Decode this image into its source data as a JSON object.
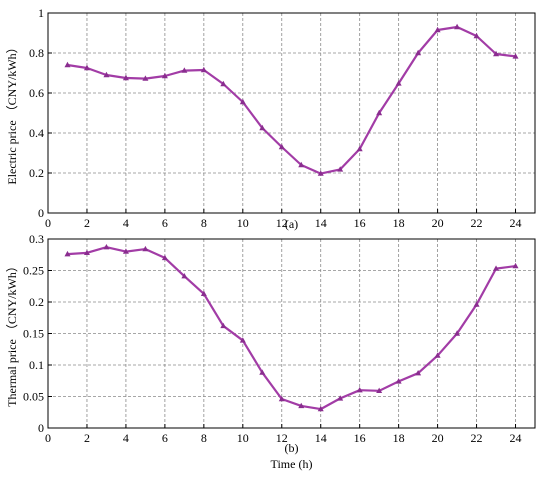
{
  "colors": {
    "series": "#a23ca6",
    "marker": "#8a2d8f"
  },
  "chart_data": [
    {
      "type": "line",
      "ylabel": "Electric price （CNY/kWh）",
      "xlabel": "",
      "caption": "(a)",
      "xlim": [
        0,
        25
      ],
      "ylim": [
        0,
        1
      ],
      "grid": true,
      "xticks": [
        0,
        2,
        4,
        6,
        8,
        10,
        12,
        14,
        16,
        18,
        20,
        22,
        24
      ],
      "yticks": [
        0,
        0.2,
        0.4,
        0.6,
        0.8,
        1
      ],
      "ytick_labels": [
        "0",
        "0.2",
        "0.4",
        "0.6",
        "0.8",
        "1"
      ],
      "x": [
        1,
        2,
        3,
        4,
        5,
        6,
        7,
        8,
        9,
        10,
        11,
        12,
        13,
        14,
        15,
        16,
        17,
        18,
        19,
        20,
        21,
        22,
        23,
        24
      ],
      "series": [
        {
          "values": [
            0.74,
            0.725,
            0.69,
            0.675,
            0.672,
            0.685,
            0.712,
            0.715,
            0.645,
            0.555,
            0.425,
            0.33,
            0.24,
            0.197,
            0.218,
            0.32,
            0.5,
            0.648,
            0.8,
            0.915,
            0.93,
            0.885,
            0.795,
            0.783
          ]
        }
      ]
    },
    {
      "type": "line",
      "ylabel": "Thermal price （CNY/kWh）",
      "xlabel": "Time (h)",
      "caption": "(b)",
      "xlim": [
        0,
        25
      ],
      "ylim": [
        0,
        0.3
      ],
      "grid": true,
      "xticks": [
        0,
        2,
        4,
        6,
        8,
        10,
        12,
        14,
        16,
        18,
        20,
        22,
        24
      ],
      "yticks": [
        0,
        0.05,
        0.1,
        0.15,
        0.2,
        0.25,
        0.3
      ],
      "ytick_labels": [
        "0",
        "0.05",
        "0.1",
        "0.15",
        "0.2",
        "0.25",
        "0.3"
      ],
      "x": [
        1,
        2,
        3,
        4,
        5,
        6,
        7,
        8,
        9,
        10,
        11,
        12,
        13,
        14,
        15,
        16,
        17,
        18,
        19,
        20,
        21,
        22,
        23,
        24
      ],
      "series": [
        {
          "values": [
            0.276,
            0.278,
            0.287,
            0.28,
            0.284,
            0.27,
            0.241,
            0.213,
            0.162,
            0.139,
            0.088,
            0.046,
            0.035,
            0.03,
            0.047,
            0.06,
            0.059,
            0.074,
            0.087,
            0.115,
            0.15,
            0.196,
            0.253,
            0.257
          ]
        }
      ]
    }
  ]
}
